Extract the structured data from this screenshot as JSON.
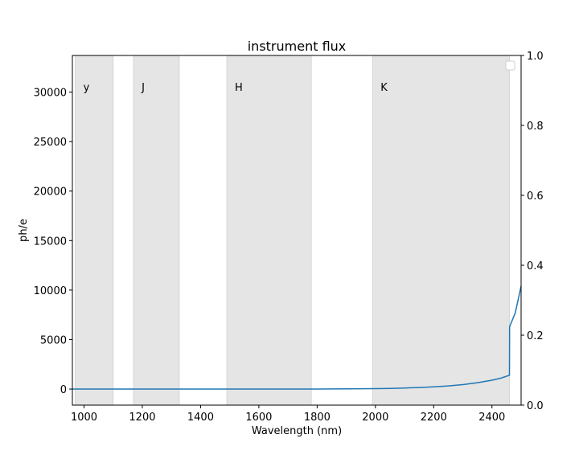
{
  "chart_data": {
    "type": "line",
    "title": "instrument flux",
    "xlabel": "Wavelength (nm)",
    "ylabel": "ph/e",
    "xlim": [
      960,
      2500
    ],
    "ylim": [
      -1620,
      33700
    ],
    "y2lim": [
      0.0,
      1.0
    ],
    "x_ticks": [
      1000,
      1200,
      1400,
      1600,
      1800,
      2000,
      2200,
      2400
    ],
    "y_ticks": [
      0,
      5000,
      10000,
      15000,
      20000,
      25000,
      30000
    ],
    "y2_ticks": [
      "0.0",
      "0.2",
      "0.4",
      "0.6",
      "0.8",
      "1.0"
    ],
    "grid": false,
    "legend": "upper right (empty)",
    "line_color": "#1f77b4",
    "band_color": "#e5e5e5",
    "bands": [
      {
        "label": "y",
        "x0": 970,
        "x1": 1100
      },
      {
        "label": "J",
        "x0": 1170,
        "x1": 1327
      },
      {
        "label": "H",
        "x0": 1490,
        "x1": 1780
      },
      {
        "label": "K",
        "x0": 1990,
        "x1": 2460
      }
    ],
    "series": [
      {
        "x": [
          960,
          1000,
          1100,
          1200,
          1300,
          1400,
          1500,
          1600,
          1700,
          1800,
          1900,
          2000,
          2050,
          2100,
          2150,
          2200,
          2250,
          2300,
          2350,
          2400,
          2430,
          2460,
          2460.5,
          2480,
          2500
        ],
        "y": [
          0,
          0,
          0,
          0,
          0,
          0,
          0,
          0,
          0,
          5,
          20,
          45,
          70,
          110,
          160,
          230,
          320,
          450,
          640,
          900,
          1100,
          1400,
          6300,
          7700,
          10400
        ]
      }
    ]
  }
}
